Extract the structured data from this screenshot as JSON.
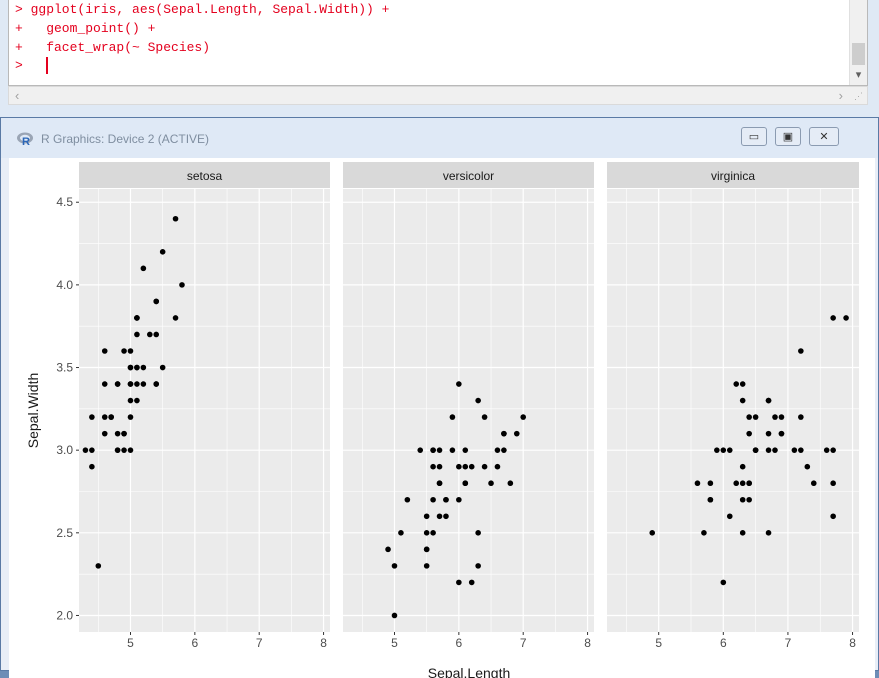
{
  "console": {
    "lines": [
      "> ggplot(iris, aes(Sepal.Length, Sepal.Width)) +",
      "+   geom_point() +",
      "+   facet_wrap(~ Species)",
      "> "
    ]
  },
  "graphics_window": {
    "title": "R Graphics: Device 2 (ACTIVE)",
    "buttons": {
      "minimize": "▭",
      "maximize": "▣",
      "close": "✕"
    }
  },
  "colors": {
    "panel": "#ebebeb",
    "strip": "#d9d9d9",
    "grid": "#ffffff",
    "point": "#000000",
    "code": "#e4001e"
  },
  "chart_data": {
    "type": "scatter",
    "xlabel": "Sepal.Length",
    "ylabel": "Sepal.Width",
    "xlim": [
      4.2,
      8.1
    ],
    "ylim": [
      1.9,
      4.58
    ],
    "x_ticks": [
      5,
      6,
      7,
      8
    ],
    "y_ticks": [
      2.0,
      2.5,
      3.0,
      3.5,
      4.0,
      4.5
    ],
    "y_tick_labels": [
      "2.0",
      "2.5",
      "3.0",
      "3.5",
      "4.0",
      "4.5"
    ],
    "facets": [
      {
        "name": "setosa",
        "points": [
          [
            5.1,
            3.5
          ],
          [
            4.9,
            3.0
          ],
          [
            4.7,
            3.2
          ],
          [
            4.6,
            3.1
          ],
          [
            5.0,
            3.6
          ],
          [
            5.4,
            3.9
          ],
          [
            4.6,
            3.4
          ],
          [
            5.0,
            3.4
          ],
          [
            4.4,
            2.9
          ],
          [
            4.9,
            3.1
          ],
          [
            5.4,
            3.7
          ],
          [
            4.8,
            3.4
          ],
          [
            4.8,
            3.0
          ],
          [
            4.3,
            3.0
          ],
          [
            5.8,
            4.0
          ],
          [
            5.7,
            4.4
          ],
          [
            5.4,
            3.9
          ],
          [
            5.1,
            3.5
          ],
          [
            5.7,
            3.8
          ],
          [
            5.1,
            3.8
          ],
          [
            5.4,
            3.4
          ],
          [
            5.1,
            3.7
          ],
          [
            4.6,
            3.6
          ],
          [
            5.1,
            3.3
          ],
          [
            4.8,
            3.4
          ],
          [
            5.0,
            3.0
          ],
          [
            5.0,
            3.4
          ],
          [
            5.2,
            3.5
          ],
          [
            5.2,
            3.4
          ],
          [
            4.7,
            3.2
          ],
          [
            4.8,
            3.1
          ],
          [
            5.4,
            3.4
          ],
          [
            5.2,
            4.1
          ],
          [
            5.5,
            4.2
          ],
          [
            4.9,
            3.1
          ],
          [
            5.0,
            3.2
          ],
          [
            5.5,
            3.5
          ],
          [
            4.9,
            3.6
          ],
          [
            4.4,
            3.0
          ],
          [
            5.1,
            3.4
          ],
          [
            5.0,
            3.5
          ],
          [
            4.5,
            2.3
          ],
          [
            4.4,
            3.2
          ],
          [
            5.0,
            3.5
          ],
          [
            5.1,
            3.8
          ],
          [
            4.8,
            3.0
          ],
          [
            5.1,
            3.8
          ],
          [
            4.6,
            3.2
          ],
          [
            5.3,
            3.7
          ],
          [
            5.0,
            3.3
          ]
        ]
      },
      {
        "name": "versicolor",
        "points": [
          [
            7.0,
            3.2
          ],
          [
            6.4,
            3.2
          ],
          [
            6.9,
            3.1
          ],
          [
            5.5,
            2.3
          ],
          [
            6.5,
            2.8
          ],
          [
            5.7,
            2.8
          ],
          [
            6.3,
            3.3
          ],
          [
            4.9,
            2.4
          ],
          [
            6.6,
            2.9
          ],
          [
            5.2,
            2.7
          ],
          [
            5.0,
            2.0
          ],
          [
            5.9,
            3.0
          ],
          [
            6.0,
            2.2
          ],
          [
            6.1,
            2.9
          ],
          [
            5.6,
            2.9
          ],
          [
            6.7,
            3.1
          ],
          [
            5.6,
            3.0
          ],
          [
            5.8,
            2.7
          ],
          [
            6.2,
            2.2
          ],
          [
            5.6,
            2.5
          ],
          [
            5.9,
            3.2
          ],
          [
            6.1,
            2.8
          ],
          [
            6.3,
            2.5
          ],
          [
            6.1,
            2.8
          ],
          [
            6.4,
            2.9
          ],
          [
            6.6,
            3.0
          ],
          [
            6.8,
            2.8
          ],
          [
            6.7,
            3.0
          ],
          [
            6.0,
            2.9
          ],
          [
            5.7,
            2.6
          ],
          [
            5.5,
            2.4
          ],
          [
            5.5,
            2.4
          ],
          [
            5.8,
            2.7
          ],
          [
            6.0,
            2.7
          ],
          [
            5.4,
            3.0
          ],
          [
            6.0,
            3.4
          ],
          [
            6.7,
            3.1
          ],
          [
            6.3,
            2.3
          ],
          [
            5.6,
            3.0
          ],
          [
            5.5,
            2.5
          ],
          [
            5.5,
            2.6
          ],
          [
            6.1,
            3.0
          ],
          [
            5.8,
            2.6
          ],
          [
            5.0,
            2.3
          ],
          [
            5.6,
            2.7
          ],
          [
            5.7,
            3.0
          ],
          [
            5.7,
            2.9
          ],
          [
            6.2,
            2.9
          ],
          [
            5.1,
            2.5
          ],
          [
            5.7,
            2.8
          ]
        ]
      },
      {
        "name": "virginica",
        "points": [
          [
            6.3,
            3.3
          ],
          [
            5.8,
            2.7
          ],
          [
            7.1,
            3.0
          ],
          [
            6.3,
            2.9
          ],
          [
            6.5,
            3.0
          ],
          [
            7.6,
            3.0
          ],
          [
            4.9,
            2.5
          ],
          [
            7.3,
            2.9
          ],
          [
            6.7,
            2.5
          ],
          [
            7.2,
            3.6
          ],
          [
            6.5,
            3.2
          ],
          [
            6.4,
            2.7
          ],
          [
            6.8,
            3.0
          ],
          [
            5.7,
            2.5
          ],
          [
            5.8,
            2.8
          ],
          [
            6.4,
            3.2
          ],
          [
            6.5,
            3.0
          ],
          [
            7.7,
            3.8
          ],
          [
            7.7,
            2.6
          ],
          [
            6.0,
            2.2
          ],
          [
            6.9,
            3.2
          ],
          [
            5.6,
            2.8
          ],
          [
            7.7,
            2.8
          ],
          [
            6.3,
            2.7
          ],
          [
            6.7,
            3.3
          ],
          [
            7.2,
            3.2
          ],
          [
            6.2,
            2.8
          ],
          [
            6.1,
            3.0
          ],
          [
            6.4,
            2.8
          ],
          [
            7.2,
            3.0
          ],
          [
            7.4,
            2.8
          ],
          [
            7.9,
            3.8
          ],
          [
            6.4,
            2.8
          ],
          [
            6.3,
            2.8
          ],
          [
            6.1,
            2.6
          ],
          [
            7.7,
            3.0
          ],
          [
            6.3,
            3.4
          ],
          [
            6.4,
            3.1
          ],
          [
            6.0,
            3.0
          ],
          [
            6.9,
            3.1
          ],
          [
            6.7,
            3.1
          ],
          [
            6.9,
            3.1
          ],
          [
            5.8,
            2.7
          ],
          [
            6.8,
            3.2
          ],
          [
            6.7,
            3.3
          ],
          [
            6.7,
            3.0
          ],
          [
            6.3,
            2.5
          ],
          [
            6.5,
            3.0
          ],
          [
            6.2,
            3.4
          ],
          [
            5.9,
            3.0
          ]
        ]
      }
    ]
  }
}
